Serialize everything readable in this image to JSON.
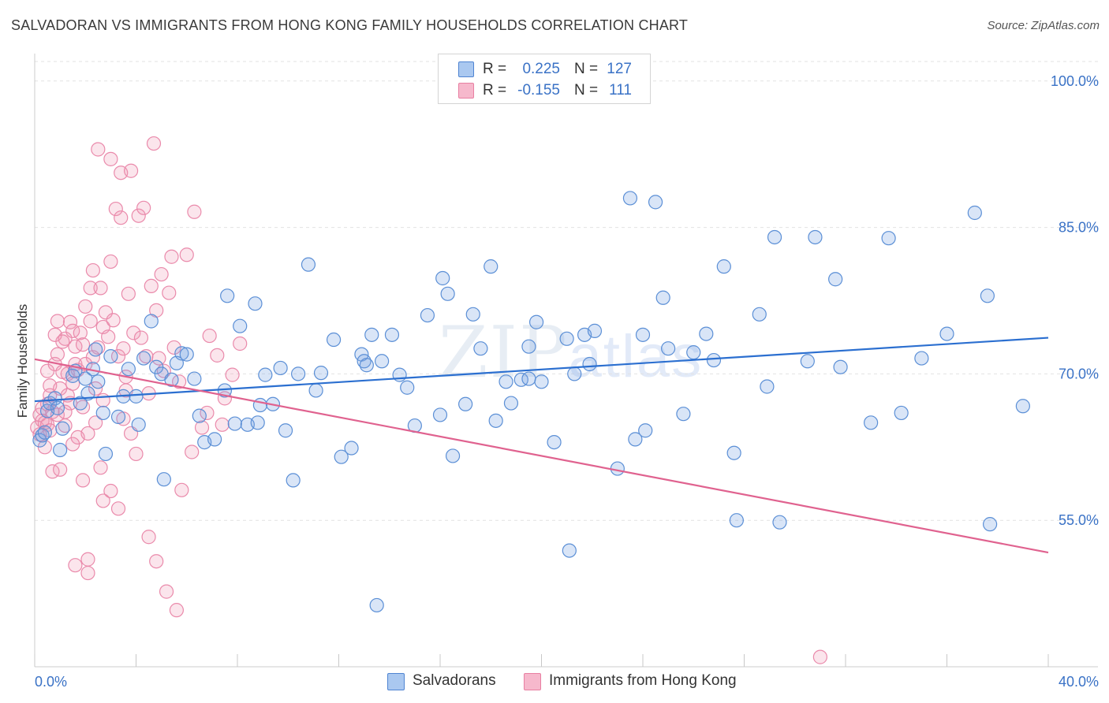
{
  "title": "SALVADORAN VS IMMIGRANTS FROM HONG KONG FAMILY HOUSEHOLDS CORRELATION CHART",
  "source": "Source: ZipAtlas.com",
  "watermark": {
    "zip": "ZIP",
    "atlas": "atlas"
  },
  "legend_top": {
    "rows": [
      {
        "r_label": "R =",
        "r_value": "0.225",
        "n_label": "N =",
        "n_value": "127",
        "color": "#4f84d2",
        "fill": "#aac8f0"
      },
      {
        "r_label": "R =",
        "r_value": "-0.155",
        "n_label": "N =",
        "n_value": "111",
        "color": "#e87fa2",
        "fill": "#f6b8cc"
      }
    ]
  },
  "legend_bottom": {
    "items": [
      {
        "label": "Salvadorans",
        "color": "#4f84d2",
        "fill": "#aac8f0"
      },
      {
        "label": "Immigrants from Hong Kong",
        "color": "#e87fa2",
        "fill": "#f6b8cc"
      }
    ]
  },
  "colors": {
    "blue_line": "#2b6fd0",
    "pink_line": "#e0628f",
    "blue_point_stroke": "#5b8fd6",
    "blue_point_fill": "rgba(120,160,225,0.28)",
    "pink_point_stroke": "#ea8aab",
    "pink_point_fill": "rgba(240,150,180,0.25)",
    "tick_text": "#3a72c6",
    "grid": "#e2e2e2"
  },
  "chart_data": {
    "type": "scatter",
    "title": "SALVADORAN VS IMMIGRANTS FROM HONG KONG FAMILY HOUSEHOLDS CORRELATION CHART",
    "xlabel": "",
    "ylabel": "Family Households",
    "xlim": [
      0,
      40
    ],
    "ylim": [
      40,
      102
    ],
    "x_tick_labels": [
      "0.0%",
      "40.0%"
    ],
    "y_ticks": [
      55,
      70,
      85,
      100
    ],
    "y_tick_labels": [
      "55.0%",
      "70.0%",
      "85.0%",
      "100.0%"
    ],
    "grid": true,
    "legend_position": "top-center",
    "series": [
      {
        "name": "Salvadorans",
        "trend": {
          "x": [
            0,
            40
          ],
          "y": [
            67.2,
            73.7
          ]
        },
        "points": [
          [
            0.2,
            63.2
          ],
          [
            0.3,
            63.7
          ],
          [
            0.4,
            64.0
          ],
          [
            0.5,
            66.2
          ],
          [
            0.6,
            67.0
          ],
          [
            0.8,
            67.5
          ],
          [
            0.9,
            66.5
          ],
          [
            1.0,
            62.2
          ],
          [
            1.1,
            64.4
          ],
          [
            1.5,
            69.8
          ],
          [
            1.6,
            70.3
          ],
          [
            1.8,
            67.0
          ],
          [
            2.0,
            69.5
          ],
          [
            2.1,
            68.0
          ],
          [
            2.3,
            70.5
          ],
          [
            2.4,
            72.5
          ],
          [
            2.5,
            69.2
          ],
          [
            2.7,
            66.0
          ],
          [
            2.8,
            61.8
          ],
          [
            3.0,
            71.8
          ],
          [
            3.3,
            65.6
          ],
          [
            3.5,
            67.7
          ],
          [
            3.7,
            70.5
          ],
          [
            4.0,
            67.7
          ],
          [
            4.1,
            64.8
          ],
          [
            4.3,
            71.6
          ],
          [
            4.6,
            75.4
          ],
          [
            4.8,
            70.7
          ],
          [
            5.0,
            70.0
          ],
          [
            5.1,
            59.2
          ],
          [
            5.4,
            69.4
          ],
          [
            5.6,
            71.1
          ],
          [
            5.8,
            72.1
          ],
          [
            6.0,
            72.0
          ],
          [
            6.3,
            69.5
          ],
          [
            6.5,
            65.7
          ],
          [
            6.7,
            63.0
          ],
          [
            7.1,
            63.3
          ],
          [
            7.5,
            68.3
          ],
          [
            7.6,
            78.0
          ],
          [
            7.9,
            64.9
          ],
          [
            8.1,
            74.9
          ],
          [
            8.4,
            64.8
          ],
          [
            8.7,
            77.2
          ],
          [
            8.9,
            66.8
          ],
          [
            9.1,
            69.9
          ],
          [
            9.4,
            66.9
          ],
          [
            9.7,
            70.6
          ],
          [
            9.9,
            64.2
          ],
          [
            10.2,
            59.1
          ],
          [
            10.4,
            70.0
          ],
          [
            10.8,
            81.2
          ],
          [
            11.1,
            68.3
          ],
          [
            11.3,
            70.1
          ],
          [
            11.8,
            73.5
          ],
          [
            12.1,
            61.5
          ],
          [
            12.5,
            62.4
          ],
          [
            12.9,
            72.0
          ],
          [
            13.0,
            71.3
          ],
          [
            13.3,
            74.0
          ],
          [
            13.5,
            46.3
          ],
          [
            13.7,
            71.3
          ],
          [
            14.1,
            74.0
          ],
          [
            14.4,
            69.9
          ],
          [
            14.7,
            68.6
          ],
          [
            15.0,
            64.7
          ],
          [
            15.5,
            76.0
          ],
          [
            16.0,
            65.8
          ],
          [
            16.1,
            79.8
          ],
          [
            16.3,
            78.2
          ],
          [
            16.5,
            61.6
          ],
          [
            17.0,
            66.9
          ],
          [
            17.3,
            76.1
          ],
          [
            17.6,
            72.6
          ],
          [
            18.0,
            81.0
          ],
          [
            18.2,
            65.2
          ],
          [
            18.6,
            69.2
          ],
          [
            18.8,
            67.0
          ],
          [
            19.2,
            69.4
          ],
          [
            19.5,
            72.8
          ],
          [
            19.8,
            75.3
          ],
          [
            20.0,
            69.2
          ],
          [
            20.5,
            63.0
          ],
          [
            21.0,
            73.6
          ],
          [
            21.1,
            51.9
          ],
          [
            21.3,
            70.0
          ],
          [
            21.7,
            74.0
          ],
          [
            21.9,
            71.0
          ],
          [
            22.1,
            74.4
          ],
          [
            23.0,
            60.3
          ],
          [
            23.5,
            88.0
          ],
          [
            23.7,
            63.3
          ],
          [
            24.0,
            74.0
          ],
          [
            24.1,
            64.2
          ],
          [
            24.5,
            87.6
          ],
          [
            24.8,
            77.8
          ],
          [
            25.0,
            72.6
          ],
          [
            25.6,
            65.9
          ],
          [
            26.0,
            72.2
          ],
          [
            26.5,
            74.1
          ],
          [
            26.8,
            71.4
          ],
          [
            27.2,
            81.0
          ],
          [
            27.6,
            61.9
          ],
          [
            27.7,
            55.0
          ],
          [
            28.6,
            76.1
          ],
          [
            28.9,
            68.7
          ],
          [
            29.2,
            84.0
          ],
          [
            29.4,
            54.8
          ],
          [
            30.5,
            71.3
          ],
          [
            30.8,
            84.0
          ],
          [
            31.6,
            79.7
          ],
          [
            31.8,
            70.7
          ],
          [
            33.0,
            65.0
          ],
          [
            33.7,
            83.9
          ],
          [
            34.2,
            66.0
          ],
          [
            35.0,
            71.6
          ],
          [
            36.0,
            74.1
          ],
          [
            37.1,
            86.5
          ],
          [
            37.6,
            78.0
          ],
          [
            37.7,
            54.6
          ],
          [
            39.0,
            66.7
          ],
          [
            8.8,
            65.0
          ],
          [
            13.1,
            70.9
          ],
          [
            19.5,
            69.5
          ]
        ]
      },
      {
        "name": "Immigrants from Hong Kong",
        "trend": {
          "x": [
            0,
            40
          ],
          "y": [
            71.5,
            51.7
          ]
        },
        "points": [
          [
            0.1,
            64.5
          ],
          [
            0.2,
            65.8
          ],
          [
            0.2,
            63.8
          ],
          [
            0.3,
            65.2
          ],
          [
            0.3,
            66.5
          ],
          [
            0.4,
            62.5
          ],
          [
            0.4,
            65.0
          ],
          [
            0.5,
            64.8
          ],
          [
            0.5,
            70.3
          ],
          [
            0.6,
            67.8
          ],
          [
            0.6,
            68.8
          ],
          [
            0.7,
            66.1
          ],
          [
            0.7,
            60.0
          ],
          [
            0.8,
            71.0
          ],
          [
            0.8,
            74.0
          ],
          [
            0.9,
            72.0
          ],
          [
            0.9,
            65.8
          ],
          [
            1.0,
            60.2
          ],
          [
            1.0,
            68.5
          ],
          [
            1.1,
            70.2
          ],
          [
            1.2,
            73.6
          ],
          [
            1.2,
            64.7
          ],
          [
            1.3,
            67.8
          ],
          [
            1.4,
            75.3
          ],
          [
            1.4,
            67.0
          ],
          [
            1.5,
            69.0
          ],
          [
            1.5,
            74.4
          ],
          [
            1.6,
            72.8
          ],
          [
            1.7,
            63.5
          ],
          [
            1.7,
            70.4
          ],
          [
            1.8,
            74.2
          ],
          [
            1.9,
            73.0
          ],
          [
            2.0,
            76.9
          ],
          [
            2.1,
            51.0
          ],
          [
            2.1,
            49.6
          ],
          [
            2.2,
            78.8
          ],
          [
            2.2,
            75.4
          ],
          [
            2.3,
            80.6
          ],
          [
            2.3,
            71.7
          ],
          [
            2.4,
            68.5
          ],
          [
            2.5,
            93.0
          ],
          [
            2.5,
            72.7
          ],
          [
            2.6,
            78.8
          ],
          [
            2.7,
            74.8
          ],
          [
            2.7,
            57.0
          ],
          [
            2.8,
            76.3
          ],
          [
            2.9,
            73.8
          ],
          [
            3.0,
            81.5
          ],
          [
            3.0,
            92.0
          ],
          [
            3.1,
            75.5
          ],
          [
            3.2,
            86.9
          ],
          [
            3.3,
            71.8
          ],
          [
            3.3,
            56.2
          ],
          [
            3.4,
            90.6
          ],
          [
            3.4,
            86.0
          ],
          [
            3.5,
            72.6
          ],
          [
            3.5,
            65.4
          ],
          [
            3.6,
            69.7
          ],
          [
            3.7,
            78.2
          ],
          [
            3.8,
            90.8
          ],
          [
            3.8,
            63.9
          ],
          [
            3.9,
            74.2
          ],
          [
            4.0,
            61.8
          ],
          [
            4.1,
            86.2
          ],
          [
            4.2,
            73.7
          ],
          [
            4.3,
            87.0
          ],
          [
            4.4,
            71.8
          ],
          [
            4.5,
            68.0
          ],
          [
            4.6,
            79.0
          ],
          [
            4.7,
            93.6
          ],
          [
            4.8,
            76.5
          ],
          [
            4.9,
            71.6
          ],
          [
            5.0,
            80.2
          ],
          [
            5.1,
            70.3
          ],
          [
            5.2,
            47.7
          ],
          [
            5.3,
            78.3
          ],
          [
            5.4,
            82.0
          ],
          [
            5.5,
            72.7
          ],
          [
            5.6,
            45.8
          ],
          [
            5.7,
            69.2
          ],
          [
            6.0,
            82.2
          ],
          [
            6.2,
            62.0
          ],
          [
            6.3,
            86.6
          ],
          [
            6.6,
            64.5
          ],
          [
            6.9,
            73.9
          ],
          [
            7.2,
            71.9
          ],
          [
            7.5,
            67.5
          ],
          [
            7.8,
            69.9
          ],
          [
            8.1,
            73.1
          ],
          [
            2.1,
            63.9
          ],
          [
            1.6,
            50.4
          ],
          [
            1.9,
            59.1
          ],
          [
            2.7,
            67.3
          ],
          [
            1.3,
            70.0
          ],
          [
            1.6,
            71.0
          ],
          [
            3.0,
            58.0
          ],
          [
            4.5,
            53.3
          ],
          [
            4.8,
            50.8
          ],
          [
            31.0,
            41.0
          ],
          [
            1.1,
            73.3
          ],
          [
            0.9,
            75.4
          ],
          [
            2.4,
            65.0
          ],
          [
            1.9,
            66.6
          ],
          [
            2.6,
            60.4
          ],
          [
            0.6,
            64.2
          ],
          [
            1.5,
            62.8
          ],
          [
            2.0,
            71.0
          ],
          [
            3.6,
            68.3
          ],
          [
            5.8,
            58.1
          ],
          [
            6.8,
            66.0
          ],
          [
            7.4,
            64.8
          ],
          [
            0.5,
            66.9
          ],
          [
            1.2,
            66.1
          ]
        ]
      }
    ]
  }
}
